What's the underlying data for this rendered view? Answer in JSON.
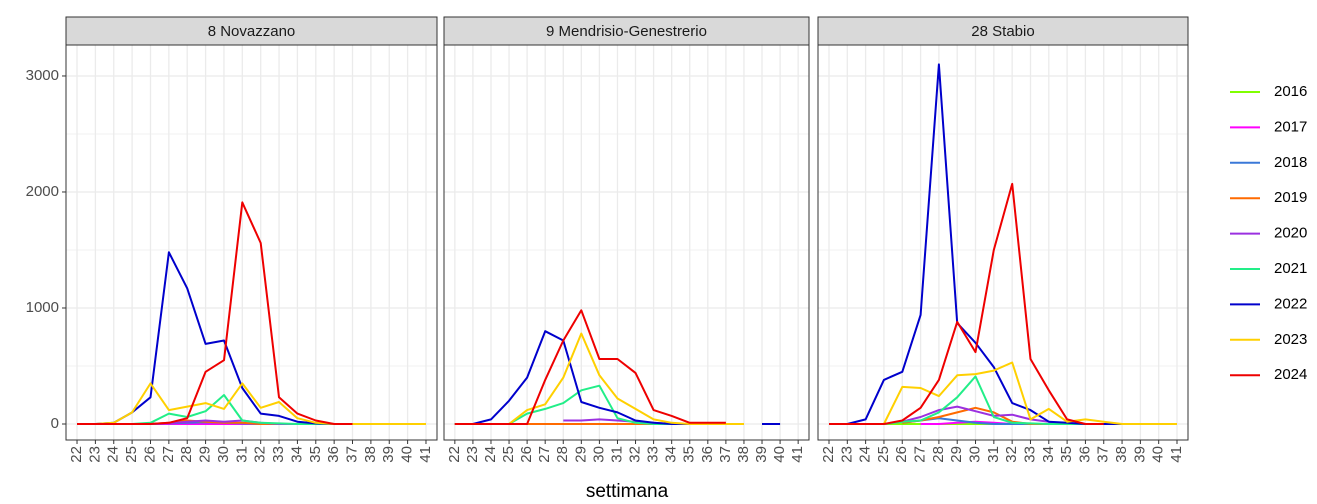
{
  "xlabel": "settimana",
  "chart_data": [
    {
      "type": "line",
      "title": "8 Novazzano",
      "x": [
        22,
        23,
        24,
        25,
        26,
        27,
        28,
        29,
        30,
        31,
        32,
        33,
        34,
        35,
        36,
        37,
        38,
        39,
        40,
        41
      ],
      "xlim": [
        21.4,
        41.6
      ],
      "xticks": [
        22,
        23,
        24,
        25,
        26,
        27,
        28,
        29,
        30,
        31,
        32,
        33,
        34,
        35,
        36,
        37,
        38,
        39,
        40,
        41
      ],
      "ylim": [
        -138,
        3267
      ],
      "yticks": [
        0,
        1000,
        2000,
        3000
      ],
      "grid": true,
      "series": [
        {
          "name": "2016",
          "color": "#80ff00",
          "values": [
            0,
            0,
            0,
            0,
            0,
            0,
            0,
            0,
            0,
            0,
            0,
            0,
            0,
            0,
            0,
            0,
            null,
            null,
            null,
            null
          ]
        },
        {
          "name": "2017",
          "color": "#ff00ff",
          "values": [
            0,
            0,
            0,
            0,
            0,
            0,
            0,
            0,
            0,
            0,
            0,
            0,
            0,
            0,
            0,
            0,
            null,
            null,
            null,
            null
          ]
        },
        {
          "name": "2018",
          "color": "#3a78d8",
          "values": [
            0,
            0,
            0,
            0,
            0,
            5,
            10,
            15,
            10,
            5,
            0,
            0,
            0,
            0,
            0,
            0,
            null,
            null,
            null,
            null
          ]
        },
        {
          "name": "2019",
          "color": "#ff6a00",
          "values": [
            0,
            0,
            0,
            0,
            0,
            10,
            30,
            20,
            10,
            10,
            0,
            0,
            0,
            0,
            0,
            0,
            null,
            null,
            null,
            null
          ]
        },
        {
          "name": "2020",
          "color": "#9b30e0",
          "values": [
            0,
            0,
            0,
            0,
            0,
            5,
            20,
            30,
            20,
            30,
            10,
            0,
            0,
            0,
            0,
            0,
            null,
            null,
            null,
            null
          ]
        },
        {
          "name": "2021",
          "color": "#22ee88",
          "values": [
            0,
            0,
            0,
            0,
            10,
            90,
            60,
            110,
            250,
            30,
            10,
            5,
            0,
            0,
            0,
            0,
            null,
            null,
            null,
            null
          ]
        },
        {
          "name": "2022",
          "color": "#0000cc",
          "values": [
            0,
            0,
            10,
            100,
            230,
            1480,
            1170,
            690,
            720,
            310,
            90,
            70,
            20,
            5,
            0,
            0,
            null,
            null,
            null,
            null
          ]
        },
        {
          "name": "2023",
          "color": "#ffd000",
          "values": [
            0,
            0,
            10,
            100,
            350,
            120,
            150,
            180,
            130,
            350,
            140,
            190,
            50,
            10,
            0,
            0,
            0,
            0,
            0,
            0
          ]
        },
        {
          "name": "2024",
          "color": "#ee0000",
          "values": [
            0,
            0,
            0,
            0,
            0,
            10,
            50,
            450,
            550,
            1910,
            1560,
            230,
            90,
            30,
            0,
            0,
            null,
            null,
            null,
            null
          ]
        }
      ]
    },
    {
      "type": "line",
      "title": "9 Mendrisio-Genestrerio",
      "x": [
        22,
        23,
        24,
        25,
        26,
        27,
        28,
        29,
        30,
        31,
        32,
        33,
        34,
        35,
        36,
        37,
        38,
        39,
        40,
        41
      ],
      "xlim": [
        21.4,
        41.6
      ],
      "xticks": [
        22,
        23,
        24,
        25,
        26,
        27,
        28,
        29,
        30,
        31,
        32,
        33,
        34,
        35,
        36,
        37,
        38,
        39,
        40,
        41
      ],
      "ylim": [
        -138,
        3267
      ],
      "yticks": [
        0,
        1000,
        2000,
        3000
      ],
      "grid": true,
      "series": [
        {
          "name": "2016",
          "color": "#80ff00",
          "values": [
            0,
            0,
            0,
            0,
            0,
            0,
            0,
            0,
            0,
            0,
            0,
            0,
            0,
            0,
            0,
            null,
            null,
            null,
            null,
            null
          ]
        },
        {
          "name": "2017",
          "color": "#ff00ff",
          "values": [
            0,
            0,
            0,
            0,
            0,
            0,
            0,
            0,
            0,
            0,
            0,
            0,
            0,
            0,
            0,
            null,
            null,
            null,
            null,
            null
          ]
        },
        {
          "name": "2018",
          "color": "#3a78d8",
          "values": [
            0,
            0,
            0,
            0,
            0,
            0,
            0,
            0,
            0,
            0,
            0,
            0,
            0,
            0,
            0,
            null,
            null,
            null,
            null,
            null
          ]
        },
        {
          "name": "2019",
          "color": "#ff6a00",
          "values": [
            0,
            0,
            0,
            0,
            0,
            0,
            0,
            0,
            0,
            0,
            0,
            0,
            0,
            0,
            0,
            null,
            null,
            null,
            null,
            null
          ]
        },
        {
          "name": "2020",
          "color": "#9b30e0",
          "values": [
            null,
            null,
            null,
            null,
            null,
            null,
            30,
            30,
            40,
            30,
            20,
            10,
            0,
            0,
            0,
            null,
            null,
            null,
            null,
            null
          ]
        },
        {
          "name": "2021",
          "color": "#22ee88",
          "values": [
            null,
            null,
            null,
            0,
            90,
            130,
            180,
            290,
            330,
            50,
            10,
            0,
            0,
            0,
            0,
            null,
            null,
            null,
            null,
            null
          ]
        },
        {
          "name": "2022",
          "color": "#0000cc",
          "values": [
            0,
            0,
            40,
            200,
            400,
            800,
            720,
            190,
            140,
            100,
            30,
            10,
            0,
            0,
            0,
            null,
            null,
            0,
            0,
            null
          ]
        },
        {
          "name": "2023",
          "color": "#ffd000",
          "values": [
            0,
            0,
            0,
            0,
            120,
            170,
            400,
            780,
            420,
            220,
            130,
            40,
            10,
            0,
            0,
            0,
            0,
            null,
            null,
            null
          ]
        },
        {
          "name": "2024",
          "color": "#ee0000",
          "values": [
            0,
            0,
            0,
            0,
            0,
            380,
            720,
            980,
            560,
            560,
            440,
            120,
            70,
            10,
            10,
            10,
            null,
            null,
            null,
            null
          ]
        }
      ]
    },
    {
      "type": "line",
      "title": "28 Stabio",
      "x": [
        22,
        23,
        24,
        25,
        26,
        27,
        28,
        29,
        30,
        31,
        32,
        33,
        34,
        35,
        36,
        37,
        38,
        39,
        40,
        41
      ],
      "xlim": [
        21.4,
        41.6
      ],
      "xticks": [
        22,
        23,
        24,
        25,
        26,
        27,
        28,
        29,
        30,
        31,
        32,
        33,
        34,
        35,
        36,
        37,
        38,
        39,
        40,
        41
      ],
      "ylim": [
        -138,
        3267
      ],
      "yticks": [
        0,
        1000,
        2000,
        3000
      ],
      "grid": true,
      "series": [
        {
          "name": "2016",
          "color": "#80ff00",
          "values": [
            0,
            0,
            0,
            0,
            0,
            0,
            0,
            0,
            0,
            0,
            0,
            0,
            0,
            0,
            0,
            0,
            0,
            0,
            0,
            null
          ]
        },
        {
          "name": "2017",
          "color": "#ff00ff",
          "values": [
            null,
            null,
            null,
            null,
            null,
            0,
            0,
            10,
            20,
            10,
            0,
            0,
            0,
            0,
            0,
            null,
            null,
            null,
            null,
            null
          ]
        },
        {
          "name": "2018",
          "color": "#3a78d8",
          "values": [
            null,
            null,
            null,
            null,
            10,
            30,
            50,
            30,
            10,
            0,
            0,
            0,
            0,
            0,
            null,
            null,
            null,
            null,
            null,
            null
          ]
        },
        {
          "name": "2019",
          "color": "#ff6a00",
          "values": [
            null,
            null,
            null,
            null,
            10,
            30,
            60,
            100,
            140,
            100,
            20,
            0,
            0,
            0,
            null,
            null,
            null,
            null,
            null,
            null
          ]
        },
        {
          "name": "2020",
          "color": "#9b30e0",
          "values": [
            null,
            null,
            null,
            0,
            20,
            60,
            120,
            150,
            110,
            70,
            80,
            40,
            20,
            0,
            0,
            null,
            null,
            null,
            null,
            null
          ]
        },
        {
          "name": "2021",
          "color": "#22ee88",
          "values": [
            0,
            0,
            0,
            0,
            20,
            30,
            100,
            230,
            410,
            60,
            10,
            5,
            0,
            0,
            0,
            0,
            null,
            null,
            null,
            null
          ]
        },
        {
          "name": "2022",
          "color": "#0000cc",
          "values": [
            0,
            0,
            40,
            380,
            450,
            940,
            3100,
            870,
            700,
            490,
            180,
            120,
            20,
            10,
            0,
            0,
            0,
            0,
            0,
            null
          ]
        },
        {
          "name": "2023",
          "color": "#ffd000",
          "values": [
            0,
            0,
            0,
            0,
            320,
            310,
            240,
            420,
            430,
            460,
            530,
            40,
            130,
            20,
            40,
            20,
            0,
            0,
            0,
            0
          ]
        },
        {
          "name": "2024",
          "color": "#ee0000",
          "values": [
            0,
            0,
            0,
            0,
            30,
            140,
            380,
            880,
            620,
            1500,
            2070,
            560,
            290,
            40,
            0,
            0,
            null,
            null,
            null,
            null
          ]
        }
      ]
    }
  ]
}
